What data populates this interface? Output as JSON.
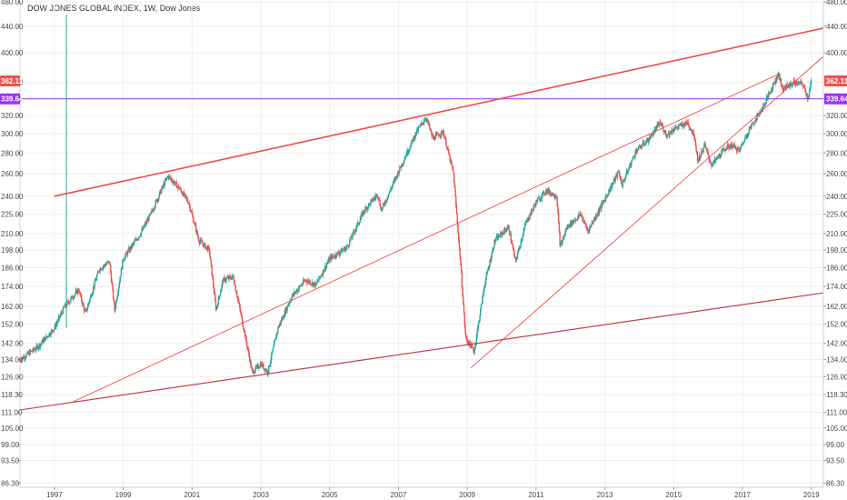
{
  "header": {
    "symbol": "DOW JONES GLOBAL INDEX",
    "interval": "1W",
    "source": "Dow Jones"
  },
  "colors": {
    "up": "#26a69a",
    "down": "#ef5350",
    "trendline": "#ef4b4b",
    "trendline_dark": "#c0444b",
    "hline": "#9b30ff",
    "price_badge": "#ef5350",
    "hline_badge": "#9b30ff",
    "grid": "#eeeeee"
  },
  "chart_data": {
    "type": "candlestick",
    "scale": "log",
    "ylim": [
      85.0,
      480.0
    ],
    "xlim": [
      1996.0,
      2019.35
    ],
    "y_ticks": [
      "86.30",
      "93.50",
      "99.00",
      "105.00",
      "111.00",
      "118.30",
      "126.00",
      "134.00",
      "142.00",
      "152.00",
      "162.00",
      "174.00",
      "186.00",
      "198.00",
      "210.00",
      "225.00",
      "240.00",
      "260.00",
      "280.00",
      "300.00",
      "320.00",
      "340.00",
      "360.00",
      "400.00",
      "440.00",
      "480.00"
    ],
    "x_ticks": [
      "1997",
      "1999",
      "2001",
      "2003",
      "2005",
      "2007",
      "2009",
      "2011",
      "2013",
      "2015",
      "2017",
      "2019"
    ],
    "current_price": "362.11",
    "horizontal_level": "339.64",
    "price_path": [
      [
        1996.0,
        134
      ],
      [
        1996.5,
        140
      ],
      [
        1997.0,
        150
      ],
      [
        1997.3,
        162
      ],
      [
        1997.7,
        172
      ],
      [
        1997.9,
        158
      ],
      [
        1998.3,
        185
      ],
      [
        1998.6,
        190
      ],
      [
        1998.75,
        160
      ],
      [
        1999.0,
        192
      ],
      [
        1999.5,
        210
      ],
      [
        1999.8,
        225
      ],
      [
        2000.1,
        245
      ],
      [
        2000.3,
        258
      ],
      [
        2000.6,
        248
      ],
      [
        2000.9,
        235
      ],
      [
        2001.2,
        205
      ],
      [
        2001.5,
        198
      ],
      [
        2001.7,
        160
      ],
      [
        2001.9,
        178
      ],
      [
        2002.2,
        180
      ],
      [
        2002.5,
        150
      ],
      [
        2002.75,
        128
      ],
      [
        2003.0,
        132
      ],
      [
        2003.2,
        128
      ],
      [
        2003.5,
        150
      ],
      [
        2003.9,
        168
      ],
      [
        2004.3,
        178
      ],
      [
        2004.6,
        175
      ],
      [
        2005.0,
        192
      ],
      [
        2005.5,
        200
      ],
      [
        2006.0,
        228
      ],
      [
        2006.4,
        242
      ],
      [
        2006.5,
        228
      ],
      [
        2007.0,
        262
      ],
      [
        2007.5,
        300
      ],
      [
        2007.8,
        318
      ],
      [
        2008.0,
        295
      ],
      [
        2008.3,
        302
      ],
      [
        2008.6,
        260
      ],
      [
        2008.8,
        190
      ],
      [
        2008.95,
        145
      ],
      [
        2009.2,
        138
      ],
      [
        2009.5,
        175
      ],
      [
        2009.8,
        205
      ],
      [
        2010.2,
        215
      ],
      [
        2010.4,
        190
      ],
      [
        2010.7,
        218
      ],
      [
        2011.0,
        235
      ],
      [
        2011.3,
        245
      ],
      [
        2011.6,
        240
      ],
      [
        2011.7,
        200
      ],
      [
        2011.9,
        215
      ],
      [
        2012.3,
        225
      ],
      [
        2012.5,
        212
      ],
      [
        2012.9,
        232
      ],
      [
        2013.4,
        262
      ],
      [
        2013.5,
        250
      ],
      [
        2013.9,
        282
      ],
      [
        2014.3,
        295
      ],
      [
        2014.6,
        312
      ],
      [
        2014.8,
        298
      ],
      [
        2015.0,
        305
      ],
      [
        2015.4,
        312
      ],
      [
        2015.6,
        298
      ],
      [
        2015.7,
        272
      ],
      [
        2015.9,
        288
      ],
      [
        2016.1,
        268
      ],
      [
        2016.5,
        285
      ],
      [
        2016.7,
        288
      ],
      [
        2016.9,
        282
      ],
      [
        2017.2,
        305
      ],
      [
        2017.6,
        330
      ],
      [
        2017.9,
        358
      ],
      [
        2018.05,
        372
      ],
      [
        2018.15,
        352
      ],
      [
        2018.5,
        360
      ],
      [
        2018.75,
        358
      ],
      [
        2018.9,
        340
      ],
      [
        2019.0,
        362.11
      ]
    ],
    "trendlines": [
      {
        "from": [
          1997.0,
          240
        ],
        "to": [
          2019.35,
          437
        ],
        "style": "main"
      },
      {
        "from": [
          1997.5,
          115
        ],
        "to": [
          2018.1,
          372
        ],
        "style": "thin"
      },
      {
        "from": [
          1996.0,
          112
        ],
        "to": [
          2019.35,
          170
        ],
        "style": "dark"
      },
      {
        "from": [
          2009.1,
          130
        ],
        "to": [
          2019.35,
          395
        ],
        "style": "thin"
      }
    ]
  }
}
